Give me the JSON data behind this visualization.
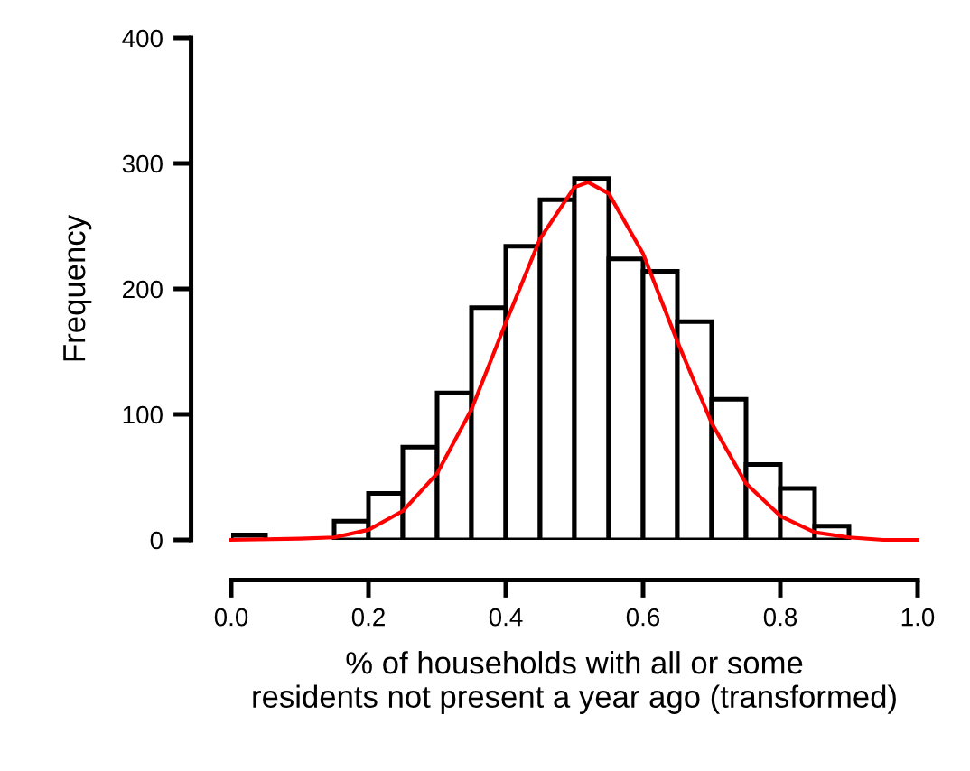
{
  "chart_data": {
    "type": "histogram",
    "xlabel": "% of households with all or some\nresidents not present a year ago (transformed)",
    "ylabel": "Frequency",
    "bins": [
      0,
      0.05,
      0.1,
      0.15,
      0.2,
      0.25,
      0.3,
      0.35,
      0.4,
      0.45,
      0.5,
      0.55,
      0.6,
      0.65,
      0.7,
      0.75,
      0.8,
      0.85,
      0.9,
      0.95,
      1.0
    ],
    "values": [
      4,
      null,
      null,
      15,
      37,
      74,
      117,
      185,
      234,
      271,
      288,
      224,
      214,
      174,
      112,
      60,
      41,
      11,
      null,
      null
    ],
    "color": "#ffffff",
    "series": [
      {
        "type": "line",
        "color": "#ff0000",
        "x": [
          0,
          0.1,
          0.15,
          0.2,
          0.25,
          0.3,
          0.35,
          0.4,
          0.45,
          0.5,
          0.52,
          0.55,
          0.6,
          0.65,
          0.7,
          0.75,
          0.8,
          0.85,
          0.9,
          0.95,
          1.0
        ],
        "values": [
          0,
          1,
          2,
          8,
          23,
          53,
          104,
          173,
          240,
          281,
          285,
          276,
          228,
          158,
          93,
          45,
          19,
          6,
          2,
          0,
          0
        ]
      }
    ],
    "xlim": [
      0,
      1
    ],
    "ylim": [
      0,
      400
    ],
    "xticks": [
      {
        "value": 0,
        "label": "0.0"
      },
      {
        "value": 0.2,
        "label": "0.2"
      },
      {
        "value": 0.4,
        "label": "0.4"
      },
      {
        "value": 0.6,
        "label": "0.6"
      },
      {
        "value": 0.8,
        "label": "0.8"
      },
      {
        "value": 1.0,
        "label": "1.0"
      }
    ],
    "yticks": [
      0,
      100,
      200,
      300,
      400
    ],
    "grid": false,
    "legend": false
  }
}
